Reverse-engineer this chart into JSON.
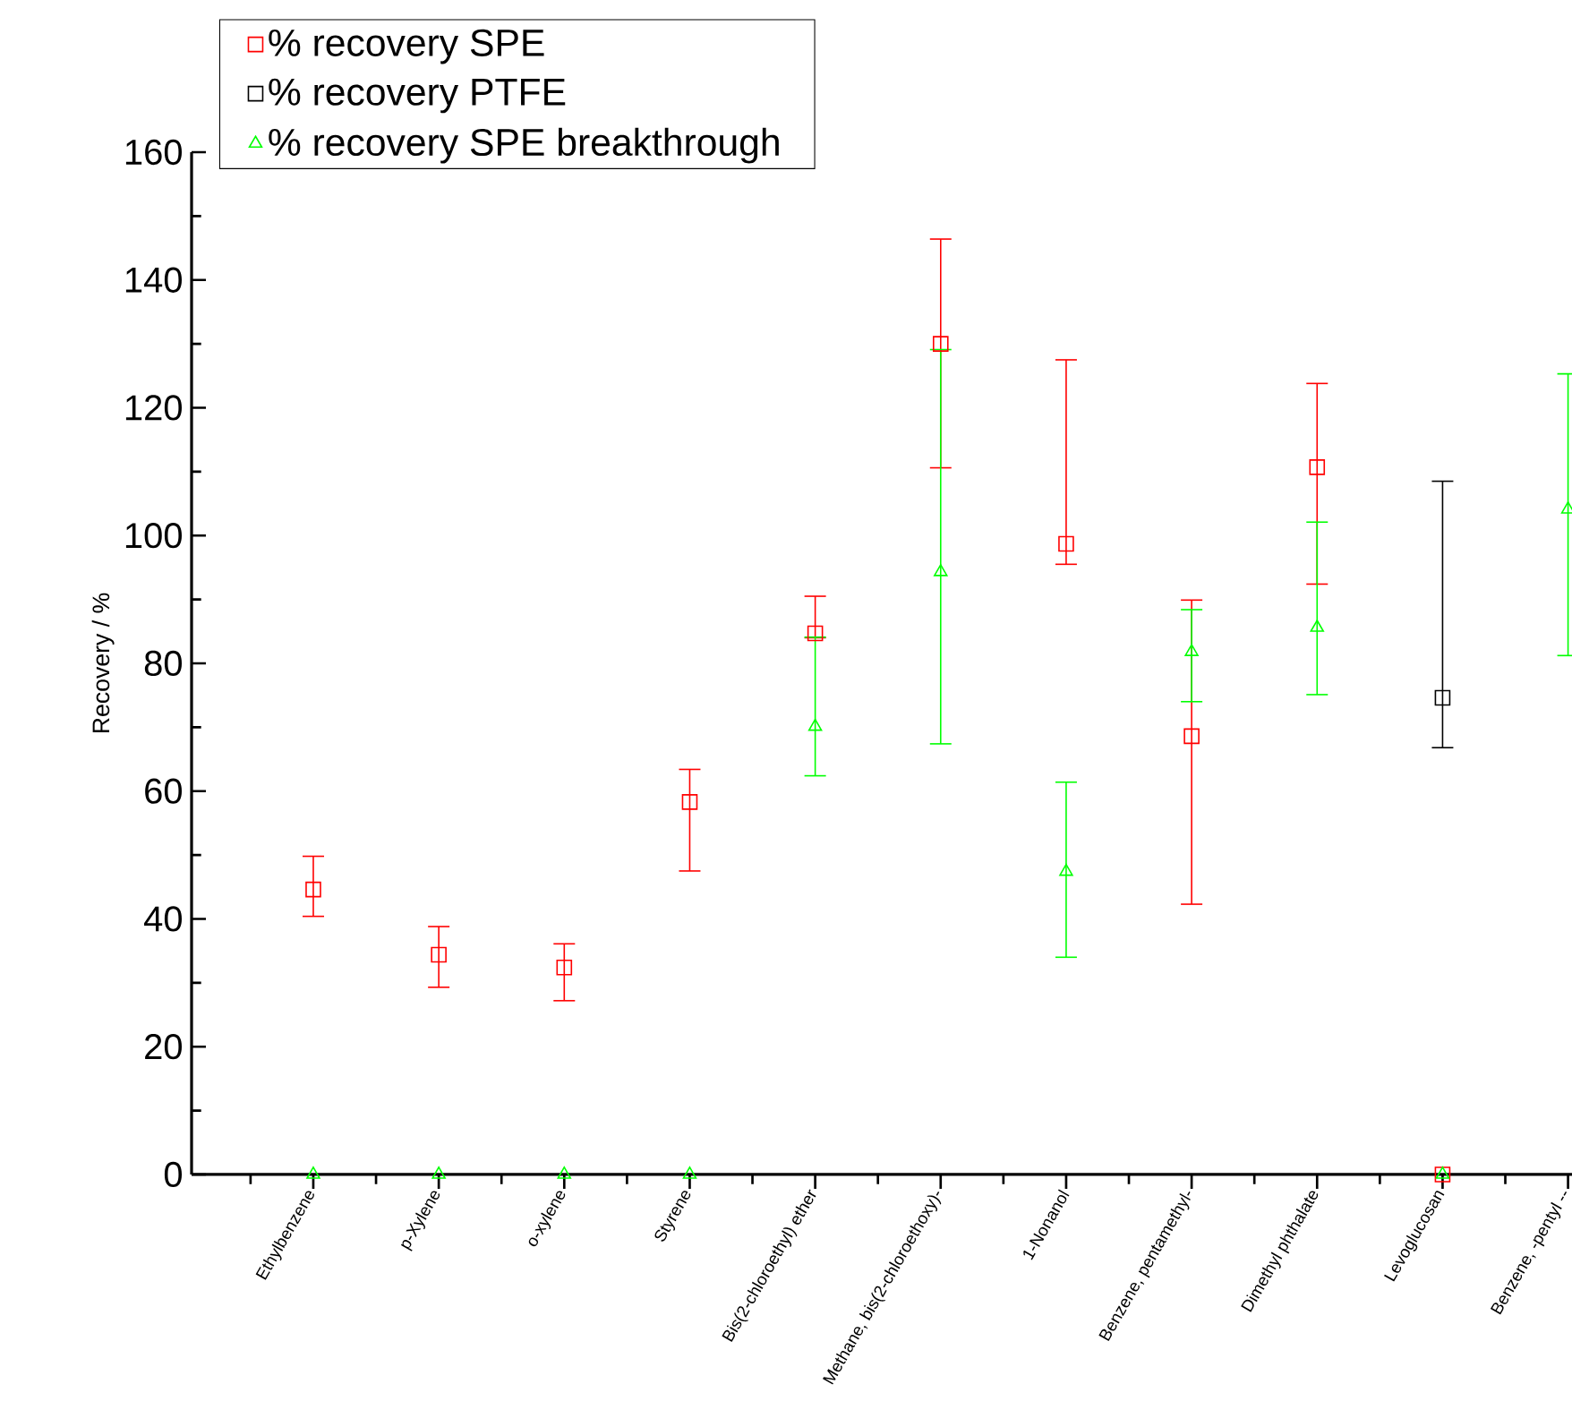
{
  "chart_data": {
    "type": "scatter",
    "ylabel": "Recovery / %",
    "categories": [
      "Ethylbenzene",
      "p-Xylene",
      "o-xylene",
      "Styrene",
      "Bis(2-chloroethyl) ether",
      "Methane, bis(2-chloroethoxy)-",
      "1-Nonanol",
      "Benzene, pentamethyl-",
      "Dimethyl phthalate",
      "Levoglucosan",
      "Benzene, -pentyl --"
    ],
    "series": [
      {
        "name": "% recovery SPE",
        "color": "#ff0000",
        "marker": "square",
        "values": [
          44.6,
          34.4,
          32.4,
          58.3,
          84.7,
          130.0,
          98.7,
          68.6,
          110.7,
          0,
          null
        ],
        "errors": [
          [
            40.4,
            49.8
          ],
          [
            29.3,
            38.8
          ],
          [
            27.2,
            36.1
          ],
          [
            47.5,
            63.4
          ],
          [
            84.0,
            90.5
          ],
          [
            110.6,
            146.4
          ],
          [
            95.5,
            127.5
          ],
          [
            42.3,
            89.9
          ],
          [
            92.4,
            123.8
          ],
          null,
          null
        ]
      },
      {
        "name": "% recovery PTFE",
        "color": "#000000",
        "marker": "square",
        "values": [
          null,
          null,
          null,
          null,
          null,
          null,
          null,
          null,
          null,
          74.6,
          null
        ],
        "errors": [
          null,
          null,
          null,
          null,
          null,
          null,
          null,
          null,
          null,
          [
            66.8,
            108.5
          ],
          null
        ]
      },
      {
        "name": "% recovery SPE breakthrough",
        "color": "#00ff00",
        "marker": "triangle",
        "values": [
          0,
          0,
          0,
          0,
          70.1,
          94.3,
          47.4,
          81.8,
          85.6,
          0,
          104.1
        ],
        "errors": [
          null,
          null,
          null,
          null,
          [
            62.4,
            84.1
          ],
          [
            67.4,
            129.1
          ],
          [
            34.0,
            61.4
          ],
          [
            74.0,
            88.4
          ],
          [
            75.1,
            102.1
          ],
          null,
          [
            81.2,
            125.3
          ]
        ]
      }
    ],
    "ylim": [
      0,
      160
    ],
    "yticks": [
      0,
      20,
      40,
      60,
      80,
      100,
      120,
      140,
      160
    ],
    "grid": false,
    "legend": "top left"
  }
}
